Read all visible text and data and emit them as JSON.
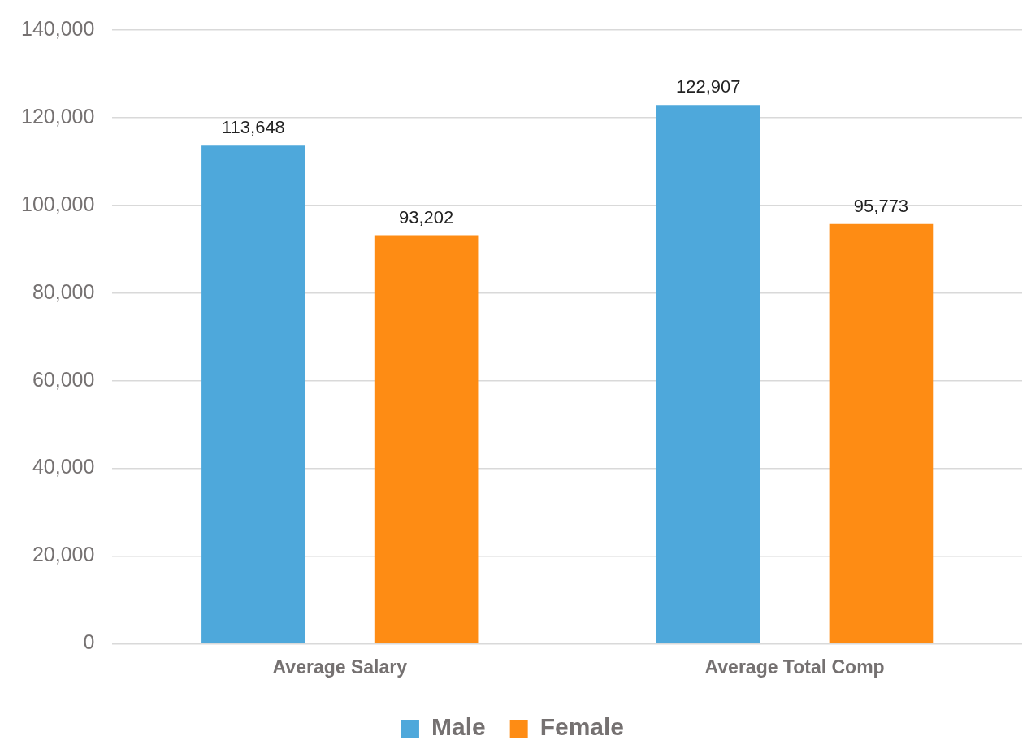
{
  "chart_data": {
    "type": "bar",
    "categories": [
      "Average Salary",
      "Average Total Comp"
    ],
    "series": [
      {
        "name": "Male",
        "color": "#4ea8db",
        "values": [
          113648,
          122907
        ],
        "value_labels": [
          "113,648",
          "122,907"
        ]
      },
      {
        "name": "Female",
        "color": "#fe8c14",
        "values": [
          93202,
          95773
        ],
        "value_labels": [
          "93,202",
          "95,773"
        ]
      }
    ],
    "ylim": [
      0,
      140000
    ],
    "yticks": [
      {
        "value": 0,
        "label": "0"
      },
      {
        "value": 20000,
        "label": "20,000"
      },
      {
        "value": 40000,
        "label": "40,000"
      },
      {
        "value": 60000,
        "label": "60,000"
      },
      {
        "value": 80000,
        "label": "80,000"
      },
      {
        "value": 100000,
        "label": "100,000"
      },
      {
        "value": 120000,
        "label": "120,000"
      },
      {
        "value": 140000,
        "label": "140,000"
      }
    ],
    "grid": "y",
    "legend": "bottom"
  }
}
